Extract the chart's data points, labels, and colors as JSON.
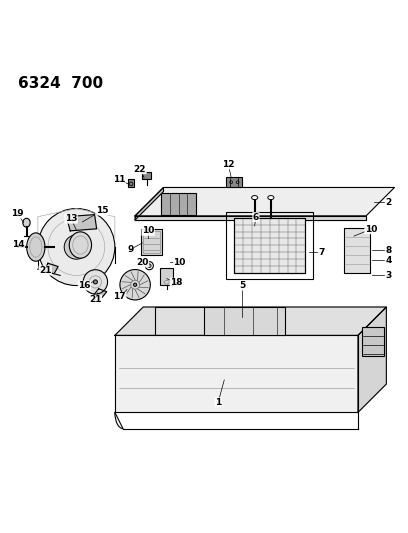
{
  "title": "6324  700",
  "bg_color": "#ffffff",
  "line_color": "#000000",
  "title_fontsize": 11,
  "title_fontweight": "bold",
  "fig_width": 4.08,
  "fig_height": 5.33,
  "dpi": 100
}
